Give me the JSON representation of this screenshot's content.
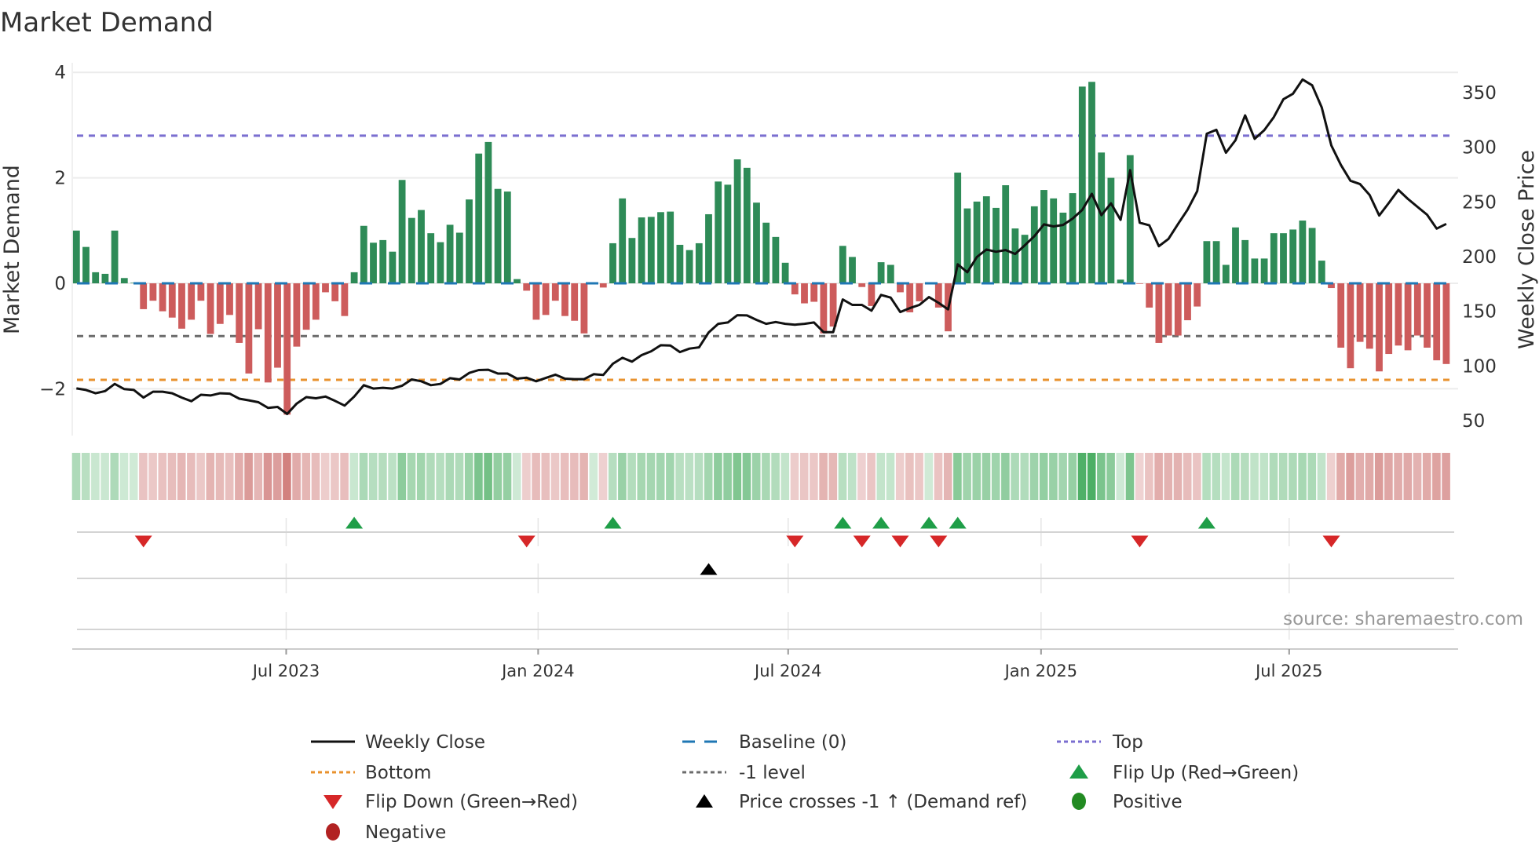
{
  "chart_data": {
    "type": "bar",
    "title": "Market Demand",
    "ylabel": "Market Demand",
    "y2label": "Weekly Close Price",
    "ylim": [
      -2.7,
      4.1
    ],
    "y2lim": [
      35,
      370
    ],
    "y_ticks": [
      "4",
      "2",
      "0",
      "−2"
    ],
    "y_tick_values": [
      4,
      2,
      0,
      -2
    ],
    "y2_ticks": [
      "350",
      "300",
      "250",
      "200",
      "150",
      "100",
      "50"
    ],
    "y2_tick_values": [
      350,
      300,
      250,
      200,
      150,
      100,
      50
    ],
    "x_unit": "week index",
    "x_ticks": [
      {
        "label": "Jul 2023",
        "week": 21.9
      },
      {
        "label": "Jan 2024",
        "week": 48.2
      },
      {
        "label": "Jul 2024",
        "week": 74.3
      },
      {
        "label": "Jan 2025",
        "week": 100.7
      },
      {
        "label": "Jul 2025",
        "week": 126.6
      }
    ],
    "levels": {
      "baseline": 0,
      "top": 2.8,
      "bottom": -1.83,
      "minus_one": -1
    },
    "demand": [
      1.0,
      0.69,
      0.21,
      0.18,
      1.0,
      0.1,
      0.01,
      -0.49,
      -0.33,
      -0.53,
      -0.65,
      -0.86,
      -0.69,
      -0.33,
      -0.96,
      -0.77,
      -0.6,
      -1.13,
      -1.71,
      -0.87,
      -1.88,
      -1.6,
      -2.49,
      -1.2,
      -0.88,
      -0.69,
      -0.17,
      -0.34,
      -0.62,
      0.21,
      1.09,
      0.77,
      0.82,
      0.6,
      1.96,
      1.24,
      1.39,
      0.95,
      0.78,
      1.11,
      0.96,
      1.59,
      2.46,
      2.68,
      1.79,
      1.74,
      0.08,
      -0.14,
      -0.69,
      -0.6,
      -0.33,
      -0.62,
      -0.71,
      -0.95,
      0,
      -0.08,
      0.76,
      1.61,
      0.86,
      1.25,
      1.26,
      1.35,
      1.36,
      0.73,
      0.63,
      0.76,
      1.31,
      1.93,
      1.87,
      2.35,
      2.19,
      1.53,
      1.15,
      0.88,
      0.39,
      -0.21,
      -0.38,
      -0.35,
      -0.95,
      -0.82,
      0.71,
      0.5,
      -0.07,
      -0.43,
      0.4,
      0.35,
      -0.17,
      -0.55,
      -0.34,
      0.02,
      -0.46,
      -0.91,
      2.1,
      1.42,
      1.55,
      1.65,
      1.43,
      1.86,
      1.04,
      0.92,
      1.46,
      1.77,
      1.61,
      1.34,
      1.71,
      3.73,
      3.82,
      2.48,
      2.0,
      0.07,
      2.43,
      -0.01,
      -0.46,
      -1.13,
      -0.99,
      -0.99,
      -0.7,
      -0.44,
      0.8,
      0.8,
      0.35,
      1.06,
      0.82,
      0.47,
      0.47,
      0.95,
      0.95,
      1.02,
      1.19,
      1.05,
      0.43,
      -0.09,
      -1.22,
      -1.61,
      -1.11,
      -1.24,
      -1.67,
      -1.34,
      -1.18,
      -1.27,
      -0.99,
      -1.22,
      -1.46,
      -1.53
    ],
    "weekly_close": [
      79.4,
      78,
      75,
      77,
      83.5,
      78.8,
      78,
      71,
      76.4,
      76.4,
      75,
      71,
      67.7,
      73.6,
      73,
      75,
      74.6,
      70,
      68.5,
      66.8,
      61.6,
      62.5,
      56,
      65.6,
      71.5,
      70.4,
      72,
      68,
      63.7,
      72,
      82.4,
      79.3,
      80,
      79.3,
      81.9,
      87.6,
      86,
      82.4,
      83.5,
      88.8,
      87.6,
      93.6,
      96.2,
      96.5,
      93,
      93,
      88.3,
      89.2,
      86,
      89,
      92,
      88.3,
      87.9,
      87.9,
      92.4,
      91.7,
      102,
      107.4,
      103.9,
      109.9,
      113.4,
      118.9,
      118.7,
      112.7,
      115.8,
      117,
      130.6,
      138.5,
      139.7,
      146.4,
      146.2,
      142.1,
      138.5,
      140.2,
      138.5,
      137.7,
      138.5,
      139.7,
      130.9,
      130.9,
      160.8,
      155.8,
      155.8,
      150.5,
      164.9,
      162.5,
      149.3,
      152.9,
      155.8,
      163,
      157.7,
      151.7,
      192.9,
      185.7,
      199.6,
      206.5,
      204.4,
      206,
      202.4,
      210.3,
      218.7,
      229.5,
      227.6,
      229,
      234.8,
      242.7,
      257.5,
      237.9,
      248.7,
      233.6,
      279,
      231,
      228.6,
      209.5,
      216.2,
      229.8,
      243,
      259.8,
      312.4,
      316,
      295,
      306.5,
      329.2,
      307.7,
      315.6,
      327.6,
      344,
      349,
      362,
      356.7,
      336.4,
      301.7,
      283.8,
      269.4,
      266.3,
      256.3,
      237.6,
      249.1,
      261,
      252.7,
      245.5,
      238.3,
      225.6,
      229.9
    ],
    "flip_up_weeks": [
      29,
      56,
      80,
      84,
      89,
      92,
      118
    ],
    "flip_down_weeks": [
      7,
      47,
      75,
      82,
      86,
      90,
      111,
      131
    ],
    "price_cross_weeks": [
      66
    ],
    "colors": {
      "positive_bar": "#2e8b57",
      "negative_bar": "#cd5c5c",
      "price_line": "#111111",
      "baseline": "#1f77b4",
      "top": "#7b6fd0",
      "bottom": "#e8922e",
      "minus_one": "#6b6b6b",
      "flip_up": "#1f9e48",
      "flip_down": "#d62728",
      "cross": "#000000",
      "positive_dot": "#228b22",
      "negative_dot": "#b22222",
      "heat_green": "#2ca048",
      "heat_red": "#c0504d"
    },
    "legend": [
      {
        "label": "Weekly Close",
        "kind": "line"
      },
      {
        "label": "Baseline (0)",
        "kind": "baseline"
      },
      {
        "label": "Top",
        "kind": "top"
      },
      {
        "label": "Bottom",
        "kind": "bottom"
      },
      {
        "label": "-1 level",
        "kind": "minus_one"
      },
      {
        "label": "Flip Up (Red→Green)",
        "kind": "flip_up"
      },
      {
        "label": "Flip Down (Green→Red)",
        "kind": "flip_down"
      },
      {
        "label": "Price crosses -1 ↑ (Demand ref)",
        "kind": "cross"
      },
      {
        "label": "Positive",
        "kind": "positive_dot"
      },
      {
        "label": "Negative",
        "kind": "negative_dot"
      }
    ],
    "legend_placement": "bottom",
    "source": "source: sharemaestro.com"
  }
}
